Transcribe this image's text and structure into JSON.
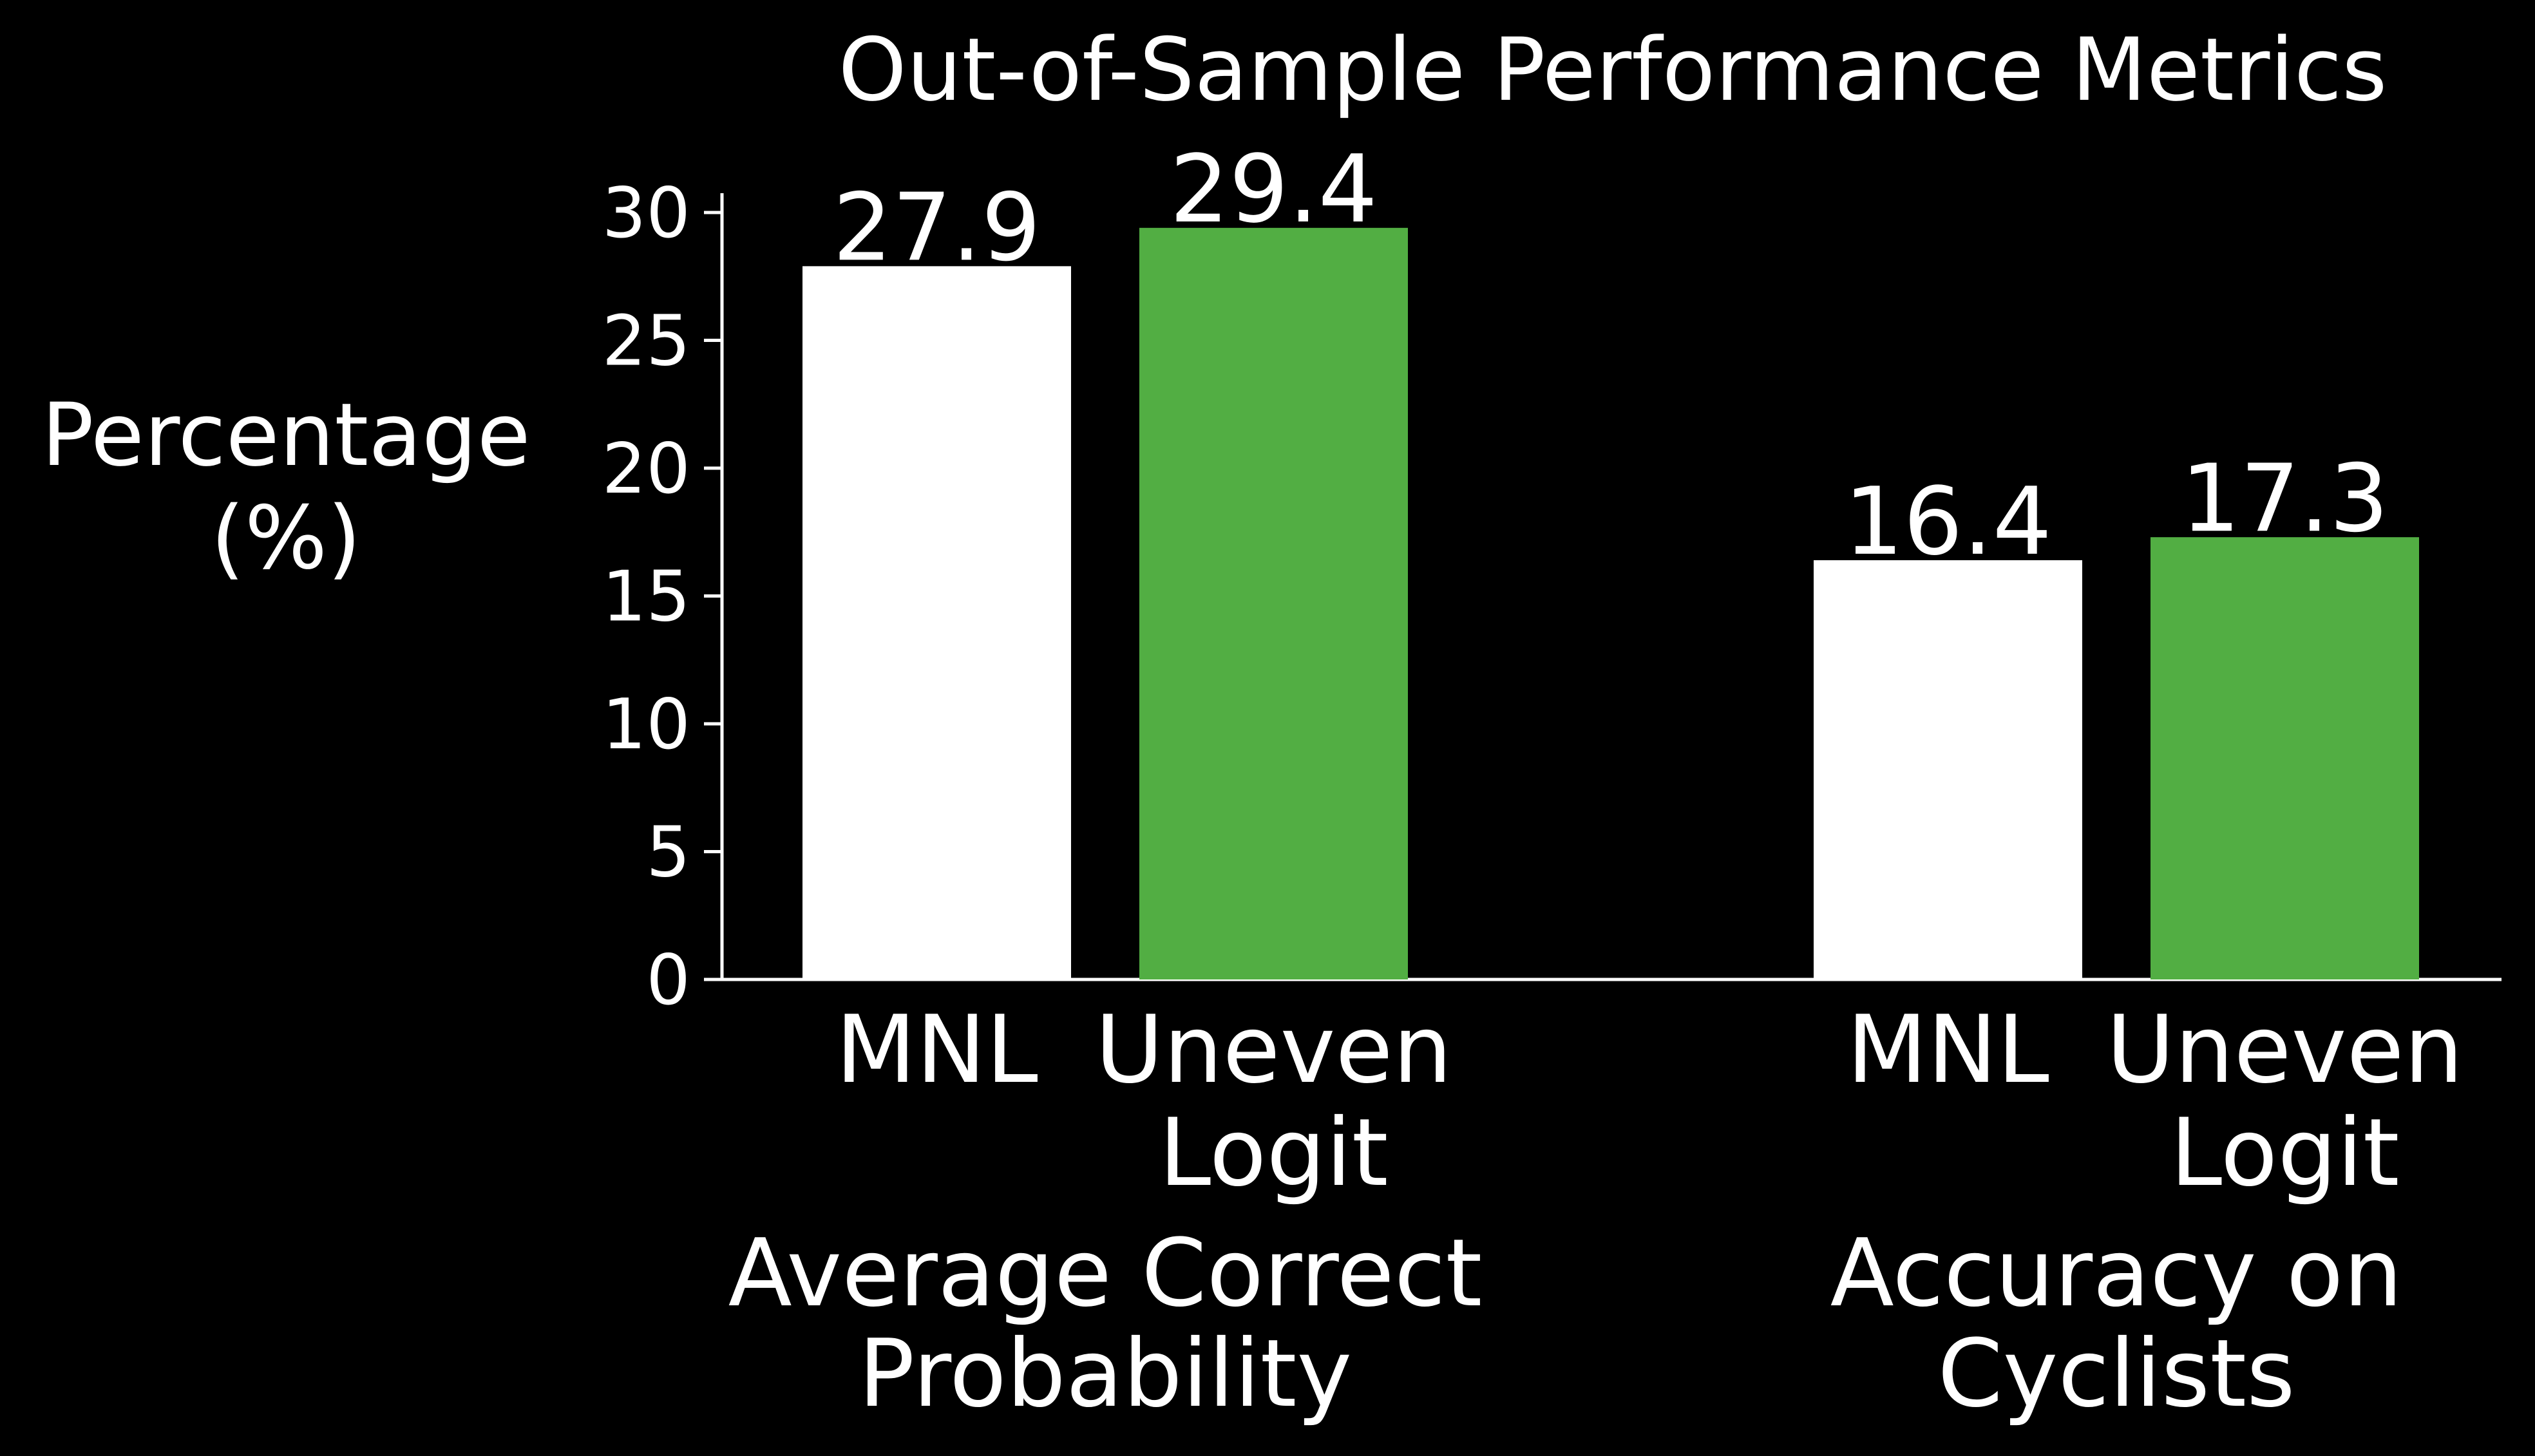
{
  "chart_data": {
    "type": "bar",
    "title": "Out-of-Sample Performance Metrics",
    "ylabel_lines": [
      "Percentage",
      "(%)"
    ],
    "xlabel": "",
    "ylim": [
      0,
      30
    ],
    "yticks": [
      0,
      5,
      10,
      15,
      20,
      25,
      30
    ],
    "grid": false,
    "legend": "none",
    "groups": [
      {
        "label_lines": [
          "Average Correct",
          "Probability"
        ],
        "bars": [
          {
            "category_lines": [
              "MNL"
            ],
            "value": 27.9,
            "value_label": "27.9",
            "color": "#ffffff"
          },
          {
            "category_lines": [
              "Uneven",
              "Logit"
            ],
            "value": 29.4,
            "value_label": "29.4",
            "color": "#52ae43"
          }
        ]
      },
      {
        "label_lines": [
          "Accuracy on",
          "Cyclists"
        ],
        "bars": [
          {
            "category_lines": [
              "MNL"
            ],
            "value": 16.4,
            "value_label": "16.4",
            "color": "#ffffff"
          },
          {
            "category_lines": [
              "Uneven",
              "Logit"
            ],
            "value": 17.3,
            "value_label": "17.3",
            "color": "#52ae43"
          }
        ]
      }
    ],
    "colors": {
      "background": "#000000",
      "axis": "#ffffff",
      "text": "#ffffff",
      "mnl": "#ffffff",
      "uneven_logit": "#52ae43"
    }
  }
}
